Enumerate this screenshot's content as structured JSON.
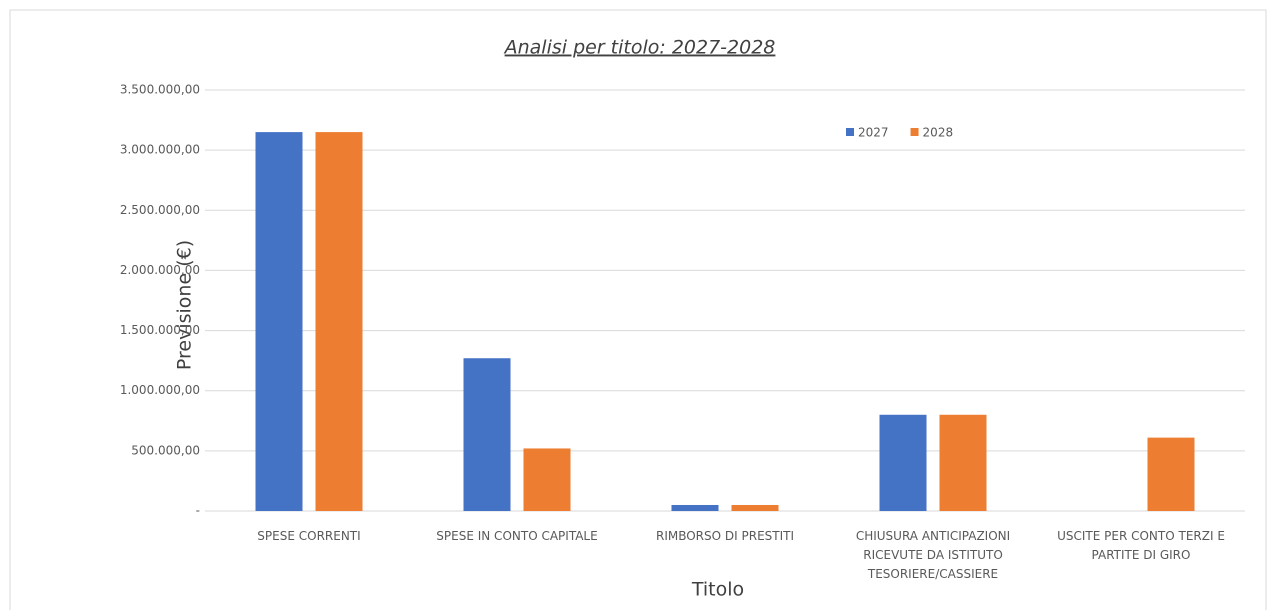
{
  "chart_data": {
    "type": "bar",
    "title": "Analisi per titolo:  2027-2028",
    "y_label": "Previsione (€)",
    "x_label": "Titolo",
    "categories": [
      "SPESE CORRENTI",
      "SPESE IN CONTO CAPITALE",
      "RIMBORSO DI PRESTITI",
      "CHIUSURA ANTICIPAZIONI RICEVUTE DA ISTITUTO TESORIERE/CASSIERE",
      "USCITE PER CONTO TERZI E PARTITE DI GIRO"
    ],
    "series": [
      {
        "name": "2027",
        "color": "#4472c4",
        "values": [
          3150000,
          1270000,
          50000,
          800000,
          0
        ]
      },
      {
        "name": "2028",
        "color": "#ed7d31",
        "values": [
          3150000,
          520000,
          50000,
          800000,
          610000
        ]
      }
    ],
    "ylim": [
      0,
      3500000
    ],
    "yticks": [
      {
        "value": 0,
        "label": "-"
      },
      {
        "value": 500000,
        "label": "500.000,00"
      },
      {
        "value": 1000000,
        "label": "1.000.000,00"
      },
      {
        "value": 1500000,
        "label": "1.500.000,00"
      },
      {
        "value": 2000000,
        "label": "2.000.000,00"
      },
      {
        "value": 2500000,
        "label": "2.500.000,00"
      },
      {
        "value": 3000000,
        "label": "3.000.000,00"
      },
      {
        "value": 3500000,
        "label": "3.500.000,00"
      }
    ],
    "grid": true,
    "legend": "top-right"
  }
}
